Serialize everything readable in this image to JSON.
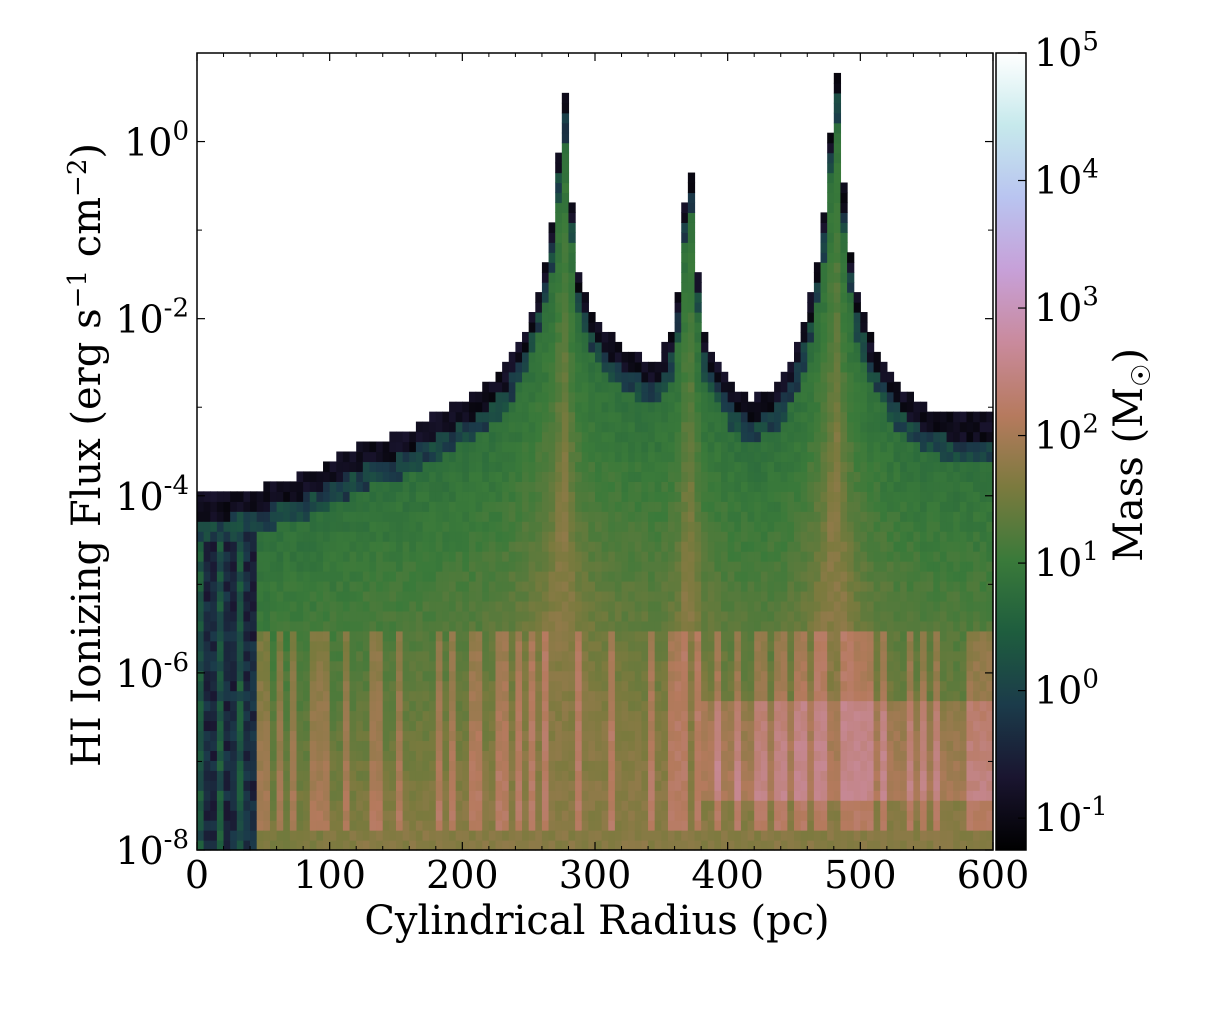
{
  "chart_data": {
    "type": "heatmap",
    "title": "",
    "xlabel": "Cylindrical Radius  (pc)",
    "ylabel": {
      "prefix": "HI Ionizing Flux (erg s",
      "exp1": "−1",
      "mid": " cm",
      "exp2": "−2",
      "suffix": ")"
    },
    "xlim": [
      0,
      600
    ],
    "ylim_log10": [
      -8,
      1
    ],
    "x_scale": "linear",
    "y_scale": "log",
    "x_ticks": [
      0,
      100,
      200,
      300,
      400,
      500,
      600
    ],
    "x_tick_labels": [
      "0",
      "100",
      "200",
      "300",
      "400",
      "500",
      "600"
    ],
    "y_ticks_log10": [
      -8,
      -6,
      -4,
      -2,
      0
    ],
    "y_tick_labels": [
      {
        "base": "10",
        "exp": "-8"
      },
      {
        "base": "10",
        "exp": "-6"
      },
      {
        "base": "10",
        "exp": "-4"
      },
      {
        "base": "10",
        "exp": "-2"
      },
      {
        "base": "10",
        "exp": "0"
      }
    ],
    "colorbar": {
      "label": "Mass (M",
      "label_sub": "☉",
      "label_end": ")",
      "scale": "log",
      "range_log10": [
        -1.25,
        5
      ],
      "ticks_log10": [
        -1,
        0,
        1,
        2,
        3,
        4,
        5
      ],
      "tick_labels": [
        {
          "base": "10",
          "exp": "-1"
        },
        {
          "base": "10",
          "exp": "0"
        },
        {
          "base": "10",
          "exp": "1"
        },
        {
          "base": "10",
          "exp": "2"
        },
        {
          "base": "10",
          "exp": "3"
        },
        {
          "base": "10",
          "exp": "4"
        },
        {
          "base": "10",
          "exp": "5"
        }
      ],
      "colormap": "cubehelix",
      "colormap_stops": [
        "#000000",
        "#1a1530",
        "#1b3b4a",
        "#1e5d3e",
        "#3a7a3a",
        "#7b7a3e",
        "#b67a5e",
        "#c98a9c",
        "#c7a0d8",
        "#b9c4f0",
        "#c6e9ec",
        "#ffffff"
      ]
    },
    "bins": {
      "x_count": 120,
      "y_count": 80
    },
    "peaks_pc": [
      275,
      370,
      480
    ],
    "upper_envelope_log10": {
      "x": [
        0,
        20,
        50,
        90,
        120,
        140,
        160,
        190,
        210,
        230,
        245,
        255,
        262,
        268,
        272,
        276,
        282,
        288,
        300,
        320,
        345,
        360,
        366,
        370,
        374,
        380,
        390,
        405,
        420,
        440,
        455,
        465,
        472,
        478,
        482,
        486,
        495,
        510,
        530,
        550,
        570,
        600
      ],
      "y": [
        -4.0,
        -4.0,
        -3.9,
        -3.7,
        -3.45,
        -3.35,
        -3.25,
        -3.0,
        -2.85,
        -2.6,
        -2.2,
        -1.8,
        -1.4,
        -0.9,
        -0.3,
        0.9,
        -0.6,
        -1.5,
        -2.0,
        -2.3,
        -2.5,
        -2.1,
        -1.2,
        0.2,
        -0.6,
        -2.1,
        -2.4,
        -2.8,
        -2.9,
        -2.7,
        -2.2,
        -1.6,
        -0.9,
        0.2,
        0.9,
        -0.3,
        -1.6,
        -2.3,
        -2.8,
        -3.0,
        -3.1,
        -3.1
      ]
    },
    "legend": "none",
    "grid": false
  }
}
